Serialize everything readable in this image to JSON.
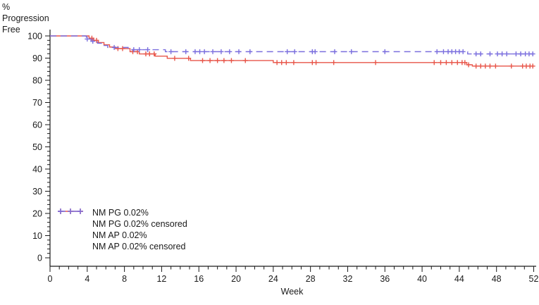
{
  "page": {
    "background": "#ffffff",
    "axis_color": "#1a1a1a"
  },
  "chart_data": {
    "type": "line",
    "subtype": "kaplan-meier-step-plot",
    "title": "",
    "ylabel_lines": [
      "%",
      "Progression",
      "Free"
    ],
    "xlabel": "Week",
    "xlim": [
      0,
      52
    ],
    "ylim": [
      0,
      100
    ],
    "x_major_ticks": [
      0,
      4,
      8,
      12,
      16,
      20,
      24,
      28,
      32,
      36,
      40,
      44,
      48,
      52
    ],
    "x_minor_step": 1,
    "y_major_ticks": [
      0,
      10,
      20,
      30,
      40,
      50,
      60,
      70,
      80,
      90,
      100
    ],
    "y_minor_step": 2,
    "grid": false,
    "legend_position": "inside-lower-left",
    "series": [
      {
        "name": "NM PG 0.02%",
        "color": "#E8564A",
        "style": "solid",
        "points": [
          [
            0,
            100
          ],
          [
            4.2,
            99
          ],
          [
            4.7,
            98
          ],
          [
            5.2,
            97
          ],
          [
            5.8,
            96
          ],
          [
            6.4,
            95
          ],
          [
            7.0,
            94.3
          ],
          [
            8.6,
            92.9
          ],
          [
            9.6,
            91.9
          ],
          [
            11.3,
            90.9
          ],
          [
            12.6,
            89.9
          ],
          [
            15.1,
            88.9
          ],
          [
            24.0,
            88.0
          ],
          [
            44.8,
            87.0
          ],
          [
            45.4,
            86.4
          ],
          [
            52,
            86.4
          ]
        ],
        "censored_name": "NM PG 0.02% censored",
        "censored": [
          [
            4.5,
            99
          ],
          [
            5.0,
            98
          ],
          [
            7.3,
            94.3
          ],
          [
            7.8,
            94.3
          ],
          [
            8.9,
            92.9
          ],
          [
            9.4,
            92.9
          ],
          [
            10.3,
            91.9
          ],
          [
            10.7,
            91.9
          ],
          [
            11.2,
            91.9
          ],
          [
            13.4,
            89.9
          ],
          [
            14.9,
            89.9
          ],
          [
            16.4,
            88.9
          ],
          [
            17.2,
            88.9
          ],
          [
            18.0,
            88.9
          ],
          [
            18.7,
            88.9
          ],
          [
            19.5,
            88.9
          ],
          [
            21.0,
            88.9
          ],
          [
            24.4,
            88
          ],
          [
            24.9,
            88
          ],
          [
            25.4,
            88
          ],
          [
            26.2,
            88
          ],
          [
            28.2,
            88
          ],
          [
            28.6,
            88
          ],
          [
            30.5,
            88
          ],
          [
            35.0,
            88
          ],
          [
            41.3,
            88
          ],
          [
            42.0,
            88
          ],
          [
            42.6,
            88
          ],
          [
            43.2,
            88
          ],
          [
            43.8,
            88
          ],
          [
            44.3,
            88
          ],
          [
            44.6,
            88
          ],
          [
            45.0,
            87
          ],
          [
            45.8,
            86.4
          ],
          [
            46.3,
            86.4
          ],
          [
            46.8,
            86.4
          ],
          [
            47.3,
            86.4
          ],
          [
            47.9,
            86.4
          ],
          [
            49.6,
            86.4
          ],
          [
            50.8,
            86.4
          ],
          [
            51.2,
            86.4
          ],
          [
            51.6,
            86.4
          ],
          [
            51.9,
            86.4
          ]
        ]
      },
      {
        "name": "NM AP 0.02%",
        "color": "#7B6FDE",
        "style": "dashed",
        "points": [
          [
            0,
            100
          ],
          [
            3.9,
            98.6
          ],
          [
            4.4,
            97.6
          ],
          [
            5.1,
            96.7
          ],
          [
            5.8,
            95.7
          ],
          [
            6.2,
            94.8
          ],
          [
            8.4,
            93.8
          ],
          [
            12.4,
            92.9
          ],
          [
            44.9,
            91.9
          ],
          [
            52,
            91.9
          ]
        ],
        "censored_name": "NM AP 0.02% censored",
        "censored": [
          [
            4.0,
            98.6
          ],
          [
            4.6,
            97.6
          ],
          [
            6.9,
            94.8
          ],
          [
            9.0,
            93.8
          ],
          [
            9.6,
            93.8
          ],
          [
            10.5,
            93.8
          ],
          [
            13.0,
            92.9
          ],
          [
            14.6,
            92.9
          ],
          [
            15.6,
            92.9
          ],
          [
            16.1,
            92.9
          ],
          [
            16.6,
            92.9
          ],
          [
            17.5,
            92.9
          ],
          [
            18.4,
            92.9
          ],
          [
            19.3,
            92.9
          ],
          [
            20.3,
            92.9
          ],
          [
            21.5,
            92.9
          ],
          [
            25.5,
            92.9
          ],
          [
            26.3,
            92.9
          ],
          [
            28.2,
            92.9
          ],
          [
            28.5,
            92.9
          ],
          [
            30.6,
            92.9
          ],
          [
            32.4,
            92.9
          ],
          [
            36.0,
            92.9
          ],
          [
            41.6,
            92.9
          ],
          [
            42.3,
            92.9
          ],
          [
            42.8,
            92.9
          ],
          [
            43.2,
            92.9
          ],
          [
            43.6,
            92.9
          ],
          [
            44.0,
            92.9
          ],
          [
            44.4,
            92.9
          ],
          [
            45.8,
            91.9
          ],
          [
            46.3,
            91.9
          ],
          [
            47.3,
            91.9
          ],
          [
            48.1,
            91.9
          ],
          [
            48.6,
            91.9
          ],
          [
            49.1,
            91.9
          ],
          [
            50.1,
            91.9
          ],
          [
            50.6,
            91.9
          ],
          [
            51.1,
            91.9
          ],
          [
            51.5,
            91.9
          ],
          [
            51.9,
            91.9
          ]
        ]
      }
    ],
    "legend": [
      {
        "swatch": "line-solid",
        "color": "#E8564A",
        "label": "NM PG 0.02%"
      },
      {
        "swatch": "plus-marks",
        "color": "#E8564A",
        "label": "NM PG 0.02% censored"
      },
      {
        "swatch": "line-dashed",
        "color": "#7B6FDE",
        "label": "NM AP 0.02%"
      },
      {
        "swatch": "plus-marks",
        "color": "#7B6FDE",
        "label": "NM AP 0.02% censored"
      }
    ]
  }
}
